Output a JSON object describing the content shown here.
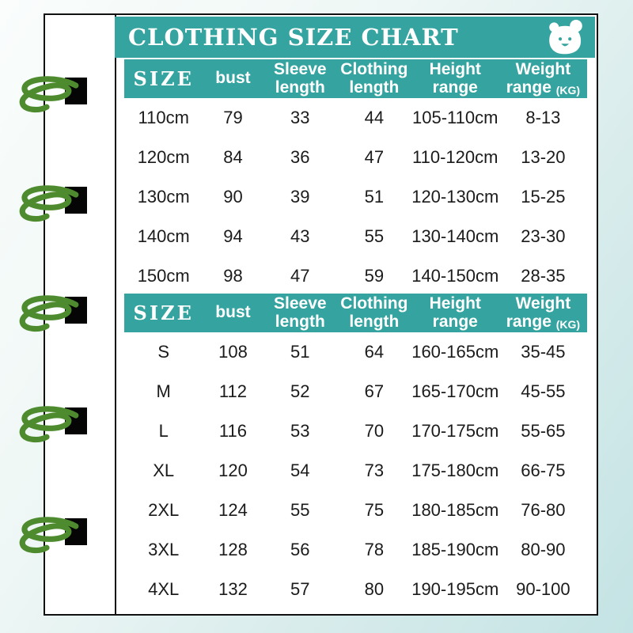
{
  "title": "CLOTHING SIZE CHART",
  "colors": {
    "teal": "#35a4a0",
    "spiral_green": "#4d8b2e",
    "hole_black": "#050505",
    "page_white": "#ffffff",
    "text_dark": "#1b1b1b"
  },
  "icons": {
    "bear_icon": "bear-face"
  },
  "tables": [
    {
      "header": {
        "size": "SIZE",
        "bust": "bust",
        "sleeve_l1": "Sleeve",
        "sleeve_l2": "length",
        "clothing_l1": "Clothing",
        "clothing_l2": "length",
        "height_l1": "Height",
        "height_l2": "range",
        "weight_l1": "Weight",
        "weight_l2": "range",
        "weight_unit": "(KG)"
      },
      "rows": [
        [
          "110cm",
          "79",
          "33",
          "44",
          "105-110cm",
          "8-13"
        ],
        [
          "120cm",
          "84",
          "36",
          "47",
          "110-120cm",
          "13-20"
        ],
        [
          "130cm",
          "90",
          "39",
          "51",
          "120-130cm",
          "15-25"
        ],
        [
          "140cm",
          "94",
          "43",
          "55",
          "130-140cm",
          "23-30"
        ],
        [
          "150cm",
          "98",
          "47",
          "59",
          "140-150cm",
          "28-35"
        ]
      ]
    },
    {
      "header": {
        "size": "SIZE",
        "bust": "bust",
        "sleeve_l1": "Sleeve",
        "sleeve_l2": "length",
        "clothing_l1": "Clothing",
        "clothing_l2": "length",
        "height_l1": "Height",
        "height_l2": "range",
        "weight_l1": "Weight",
        "weight_l2": "range",
        "weight_unit": "(KG)"
      },
      "rows": [
        [
          "S",
          "108",
          "51",
          "64",
          "160-165cm",
          "35-45"
        ],
        [
          "M",
          "112",
          "52",
          "67",
          "165-170cm",
          "45-55"
        ],
        [
          "L",
          "116",
          "53",
          "70",
          "170-175cm",
          "55-65"
        ],
        [
          "XL",
          "120",
          "54",
          "73",
          "175-180cm",
          "66-75"
        ],
        [
          "2XL",
          "124",
          "55",
          "75",
          "180-185cm",
          "76-80"
        ],
        [
          "3XL",
          "128",
          "56",
          "78",
          "185-190cm",
          "80-90"
        ],
        [
          "4XL",
          "132",
          "57",
          "80",
          "190-195cm",
          "90-100"
        ]
      ]
    }
  ],
  "binding": {
    "hole_count": 5,
    "hole_tops": [
      98,
      236,
      375,
      515,
      655
    ],
    "spiral_tops": [
      95,
      233,
      372,
      512,
      652
    ]
  }
}
